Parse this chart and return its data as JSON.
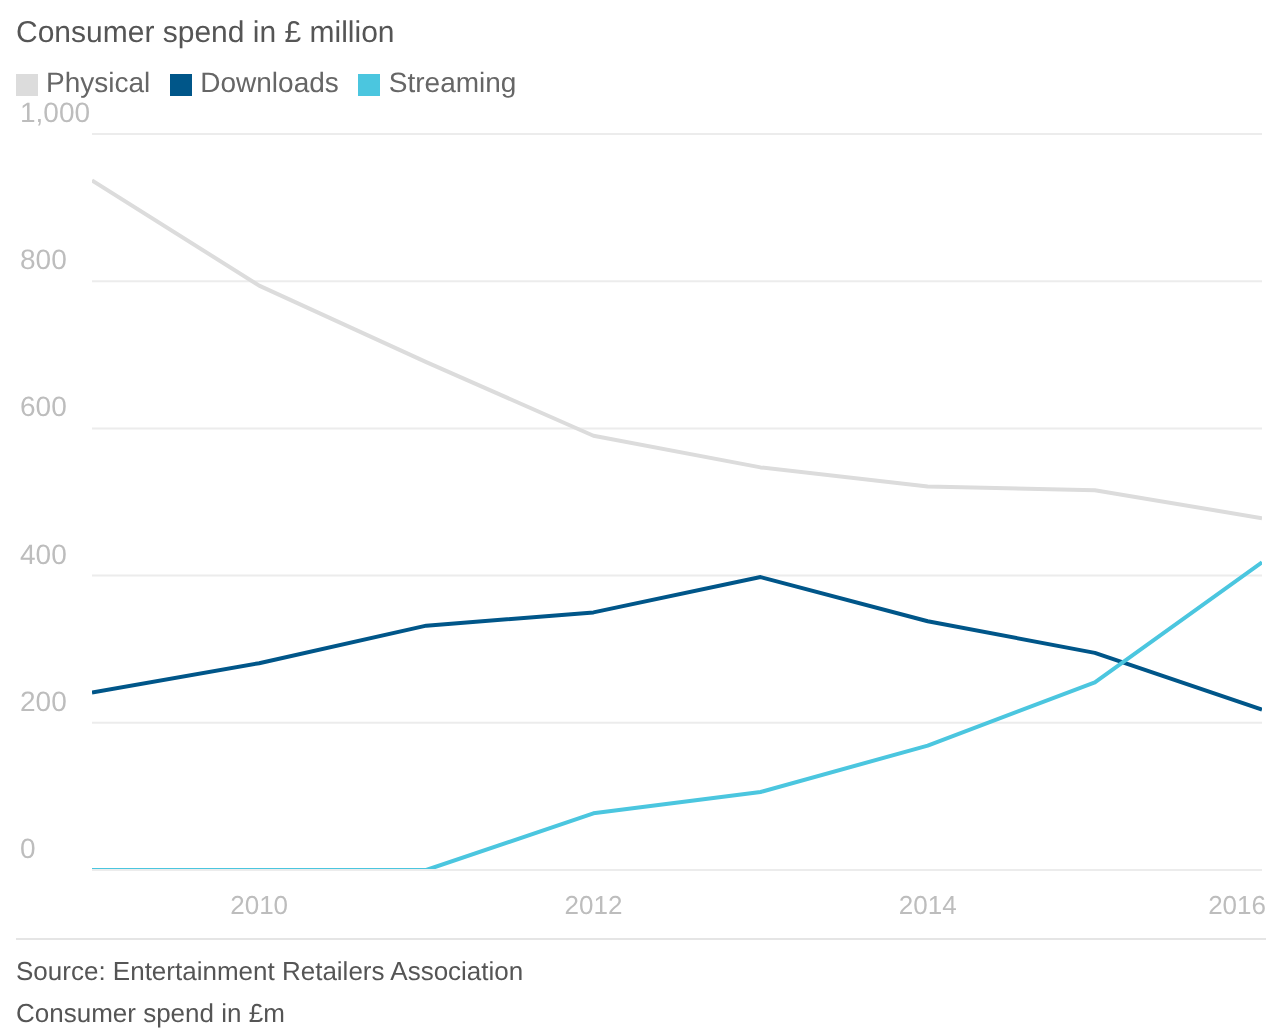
{
  "chart_data": {
    "type": "line",
    "title": "Consumer spend in £ million",
    "x": [
      2009,
      2010,
      2011,
      2012,
      2013,
      2014,
      2015,
      2016
    ],
    "series": [
      {
        "name": "Physical",
        "color": "#dcdcdc",
        "values": [
          937,
          794,
          690,
          590,
          547,
          521,
          516,
          478
        ]
      },
      {
        "name": "Downloads",
        "color": "#005689",
        "values": [
          241,
          281,
          332,
          350,
          398,
          338,
          295,
          218
        ]
      },
      {
        "name": "Streaming",
        "color": "#4bc6df",
        "values": [
          0,
          0,
          0,
          77,
          106,
          169,
          255,
          418
        ]
      }
    ],
    "xlim": [
      2009,
      2016
    ],
    "xticks": [
      2010,
      2012,
      2014,
      2016
    ],
    "ylim": [
      0,
      1000
    ],
    "yticks": [
      0,
      200,
      400,
      600,
      800,
      {
        "value": 1000,
        "label": "1,000"
      }
    ],
    "grid": "y",
    "legend": "top left",
    "marker": "none",
    "line_style": "solid",
    "annotations": [
      "Source: Entertainment Retailers Association",
      "Consumer spend in £m"
    ]
  }
}
